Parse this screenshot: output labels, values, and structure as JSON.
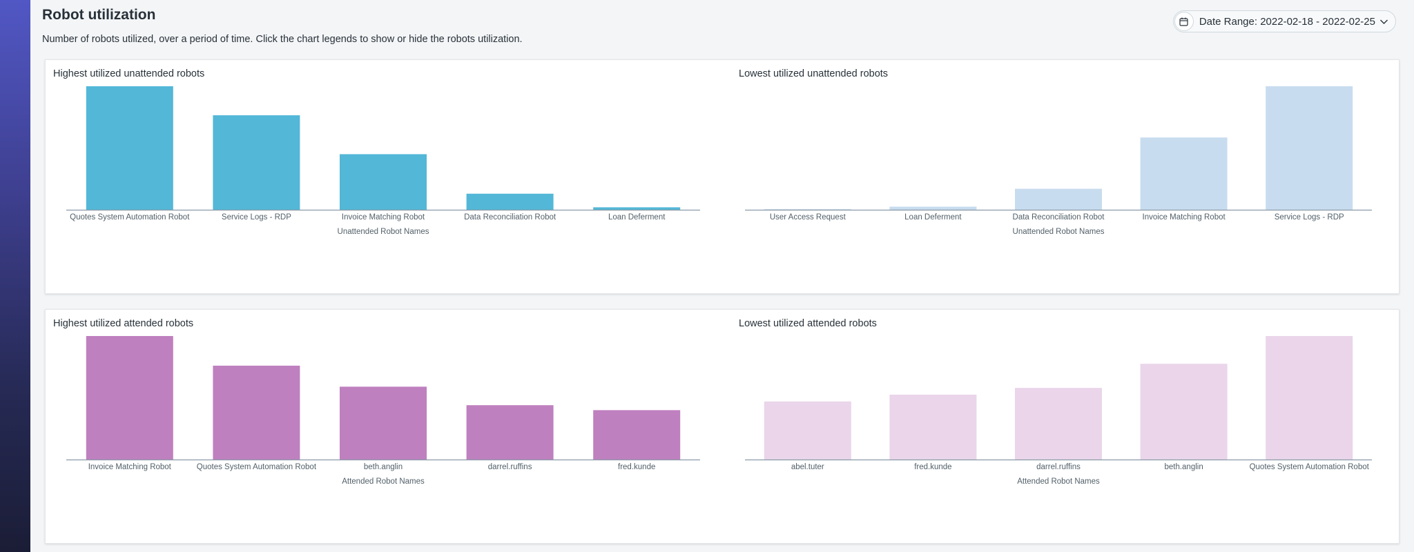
{
  "page": {
    "title": "Robot utilization",
    "subtitle": "Number of robots utilized, over a period of time. Click the chart legends to show or hide the robots utilization."
  },
  "date_range": {
    "label": "Date Range: 2022-02-18 - 2022-02-25",
    "icon": "calendar-icon",
    "chevron_icon": "chevron-down-icon"
  },
  "colors": {
    "unattended_high": "#53b7d7",
    "unattended_low": "#c8dcef",
    "attended_high": "#bf80bf",
    "attended_low": "#ead5ea",
    "axis": "#8a9aa8"
  },
  "chart_data": [
    {
      "type": "bar",
      "title": "Highest utilized unattended robots",
      "xlabel": "Unattended Robot Names",
      "categories": [
        "Quotes System Automation Robot",
        "Service Logs - RDP",
        "Invoice Matching Robot",
        "Data Reconciliation Robot",
        "Loan Deferment"
      ],
      "values": [
        100,
        76.5,
        45,
        13,
        2
      ],
      "ylim": [
        0,
        100
      ],
      "color": "#53b7d7",
      "grid": false
    },
    {
      "type": "bar",
      "title": "Lowest utilized unattended robots",
      "xlabel": "Unattended Robot Names",
      "categories": [
        "User Access Request",
        "Loan Deferment",
        "Data Reconciliation Robot",
        "Invoice Matching Robot",
        "Service Logs - RDP"
      ],
      "values": [
        0.5,
        2.5,
        17,
        58.5,
        100
      ],
      "ylim": [
        0,
        100
      ],
      "color": "#c8dcef",
      "grid": false
    },
    {
      "type": "bar",
      "title": "Highest utilized attended robots",
      "xlabel": "Attended Robot Names",
      "categories": [
        "Invoice Matching Robot",
        "Quotes System Automation Robot",
        "beth.anglin",
        "darrel.ruffins",
        "fred.kunde"
      ],
      "values": [
        100,
        76,
        59,
        44,
        40
      ],
      "ylim": [
        0,
        100
      ],
      "color": "#bf80bf",
      "grid": false
    },
    {
      "type": "bar",
      "title": "Lowest utilized attended robots",
      "xlabel": "Attended Robot Names",
      "categories": [
        "abel.tuter",
        "fred.kunde",
        "darrel.ruffins",
        "beth.anglin",
        "Quotes System Automation Robot"
      ],
      "values": [
        47,
        52.5,
        58,
        77.5,
        100
      ],
      "ylim": [
        0,
        100
      ],
      "color": "#ead5ea",
      "grid": false
    }
  ]
}
